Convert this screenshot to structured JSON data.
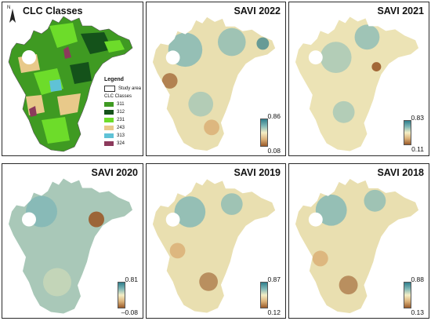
{
  "panels": [
    {
      "title": "CLC Classes"
    },
    {
      "title": "SAVI 2022",
      "max": "0.86",
      "min": "0.08"
    },
    {
      "title": "SAVI 2021",
      "max": "0.83",
      "min": "0.11"
    },
    {
      "title": "SAVI 2020",
      "max": "0.81",
      "min": "–0.08"
    },
    {
      "title": "SAVI 2019",
      "max": "0.87",
      "min": "0.12"
    },
    {
      "title": "SAVI 2018",
      "max": "0.88",
      "min": "0.13"
    }
  ],
  "north_label": "N",
  "legend": {
    "title": "Legend",
    "study_area": "Study area",
    "classes_title": "CLC Classes",
    "items": [
      {
        "code": "311",
        "color": "#3f9a22"
      },
      {
        "code": "312",
        "color": "#14521a"
      },
      {
        "code": "231",
        "color": "#6ddc2a"
      },
      {
        "code": "243",
        "color": "#e8c98a"
      },
      {
        "code": "313",
        "color": "#5fc2d6"
      },
      {
        "code": "324",
        "color": "#8c3a5c"
      }
    ]
  },
  "colors": {
    "savi_high": "#2f7e8c",
    "savi_mid": "#f4eec6",
    "savi_low": "#9a5a2a",
    "border": "#2a2a2a"
  }
}
